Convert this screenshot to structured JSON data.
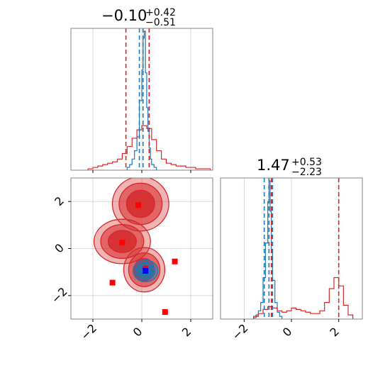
{
  "figure": {
    "type": "corner-plot",
    "colors": {
      "posterior_a": "#1f77b4",
      "posterior_b": "#d62728",
      "point_a": "#0000ff",
      "point_b": "#ff0000",
      "grid": "#b0b0b0"
    }
  },
  "chart_data": [
    {
      "type": "histogram",
      "panel": "marginal-param-1",
      "title": {
        "median": "−0.10",
        "upper": "+0.42",
        "lower": "−0.51"
      },
      "xlim": [
        -2.9,
        2.9
      ],
      "xticks": [
        -2,
        0,
        2
      ],
      "grid": true,
      "series": [
        {
          "color": "#1f77b4",
          "bin_edges": [
            -0.6,
            -0.5,
            -0.4,
            -0.3,
            -0.2,
            -0.1,
            0.0,
            0.05,
            0.1,
            0.15,
            0.2,
            0.25,
            0.3,
            0.35,
            0.4,
            0.5,
            0.6
          ],
          "heights": [
            0.02,
            0.04,
            0.08,
            0.14,
            0.24,
            0.5,
            0.72,
            0.95,
            1.0,
            0.7,
            0.45,
            0.28,
            0.16,
            0.08,
            0.04,
            0.02
          ],
          "quantile_lines": [
            -0.1,
            0.05,
            0.3
          ]
        },
        {
          "color": "#d62728",
          "bin_edges": [
            -2.2,
            -2.0,
            -1.8,
            -1.6,
            -1.4,
            -1.2,
            -1.0,
            -0.8,
            -0.6,
            -0.4,
            -0.2,
            0.0,
            0.2,
            0.4,
            0.6,
            0.8,
            1.0,
            1.2,
            1.4,
            1.6,
            1.8,
            2.0,
            2.2,
            2.4,
            2.6,
            2.8
          ],
          "heights": [
            0.01,
            0.02,
            0.03,
            0.04,
            0.05,
            0.06,
            0.08,
            0.12,
            0.17,
            0.23,
            0.29,
            0.32,
            0.3,
            0.22,
            0.14,
            0.08,
            0.05,
            0.04,
            0.03,
            0.03,
            0.02,
            0.02,
            0.01,
            0.01,
            0.01
          ],
          "quantile_lines": [
            -0.65,
            0.3
          ]
        }
      ]
    },
    {
      "type": "histogram",
      "panel": "marginal-param-2",
      "title": {
        "median": "1.47",
        "upper": "+0.53",
        "lower": "−2.23"
      },
      "xlim": [
        -3.0,
        3.0
      ],
      "xticks": [
        -2,
        0,
        2
      ],
      "grid": true,
      "series": [
        {
          "color": "#1f77b4",
          "bin_edges": [
            -1.6,
            -1.5,
            -1.4,
            -1.3,
            -1.2,
            -1.1,
            -1.0,
            -0.95,
            -0.9,
            -0.85,
            -0.8,
            -0.7,
            -0.6,
            -0.5,
            -0.4
          ],
          "heights": [
            0.01,
            0.03,
            0.06,
            0.12,
            0.3,
            0.55,
            0.85,
            1.0,
            0.78,
            0.5,
            0.28,
            0.12,
            0.05,
            0.02
          ],
          "quantile_lines": [
            -1.15,
            -0.95,
            -0.8
          ]
        },
        {
          "color": "#d62728",
          "bin_edges": [
            -1.6,
            -1.4,
            -1.2,
            -1.0,
            -0.8,
            -0.6,
            -0.4,
            -0.2,
            0.0,
            0.2,
            0.4,
            0.6,
            0.8,
            1.0,
            1.2,
            1.4,
            1.6,
            1.8,
            2.0,
            2.2,
            2.4,
            2.6
          ],
          "heights": [
            0.02,
            0.04,
            0.07,
            0.09,
            0.08,
            0.06,
            0.05,
            0.06,
            0.08,
            0.07,
            0.06,
            0.05,
            0.04,
            0.04,
            0.06,
            0.12,
            0.22,
            0.3,
            0.24,
            0.1,
            0.03
          ],
          "quantile_lines": [
            -0.85,
            2.0
          ]
        }
      ]
    },
    {
      "type": "contour",
      "panel": "joint-param-1-param-2",
      "xlim": [
        -2.9,
        2.9
      ],
      "ylim": [
        -3.0,
        3.0
      ],
      "xticks": [
        -2,
        0,
        2
      ],
      "yticks": [
        -2,
        0,
        2
      ],
      "grid": true,
      "series": [
        {
          "color": "#d62728",
          "modes": [
            {
              "x": -0.05,
              "y": 1.9,
              "sx": 0.55,
              "sy": 0.55
            },
            {
              "x": -0.8,
              "y": 0.3,
              "sx": 0.55,
              "sy": 0.45
            },
            {
              "x": 0.1,
              "y": -0.9,
              "sx": 0.4,
              "sy": 0.45
            }
          ]
        },
        {
          "color": "#1f77b4",
          "modes": [
            {
              "x": 0.15,
              "y": -0.95,
              "sx": 0.22,
              "sy": 0.2
            }
          ]
        }
      ],
      "points": [
        {
          "x": -0.15,
          "y": 1.85,
          "color": "#ff0000"
        },
        {
          "x": -0.8,
          "y": 0.25,
          "color": "#ff0000"
        },
        {
          "x": 0.15,
          "y": -0.85,
          "color": "#ff0000"
        },
        {
          "x": 1.35,
          "y": -0.55,
          "color": "#ff0000"
        },
        {
          "x": -1.2,
          "y": -1.45,
          "color": "#ff0000"
        },
        {
          "x": 0.95,
          "y": -2.7,
          "color": "#ff0000"
        },
        {
          "x": 0.15,
          "y": -0.95,
          "color": "#0000ff"
        }
      ]
    }
  ]
}
